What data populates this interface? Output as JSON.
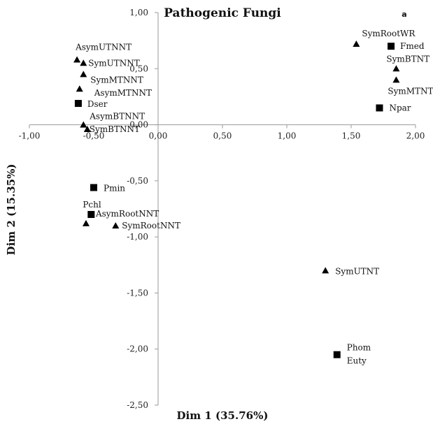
{
  "chart_data": {
    "type": "scatter",
    "title": "Pathogenic Fungi",
    "panel_label": "a",
    "xlabel": "Dim 1 (35.76%)",
    "ylabel": "Dim 2 (15.35%)",
    "xlim": [
      -1.0,
      2.0
    ],
    "ylim": [
      -2.5,
      1.0
    ],
    "x_ticks": [
      "-1,00",
      "-0,50",
      "0,00",
      "0,50",
      "1,00",
      "1,50",
      "2,00"
    ],
    "y_ticks": [
      "1,00",
      "0,50",
      "0,00",
      "-0,50",
      "-1,00",
      "-1,50",
      "-2,00",
      "-2,50"
    ],
    "grid": false,
    "series": [
      {
        "marker": "triangle",
        "points": [
          {
            "label": "AsymUTNNT",
            "x": -0.63,
            "y": 0.58
          },
          {
            "label": "SymUTNNT",
            "x": -0.58,
            "y": 0.55
          },
          {
            "label": "SymMTNNT",
            "x": -0.58,
            "y": 0.45
          },
          {
            "label": "AsymMTNNT",
            "x": -0.61,
            "y": 0.32
          },
          {
            "label": "AsymBTNNT",
            "x": -0.58,
            "y": 0.0
          },
          {
            "label": "SymBTNNT",
            "x": -0.55,
            "y": -0.04
          },
          {
            "label": "AsymRootNNT",
            "x": -0.56,
            "y": -0.88
          },
          {
            "label": "SymRootNNT",
            "x": -0.33,
            "y": -0.9
          },
          {
            "label": "SymRootWR",
            "x": 1.54,
            "y": 0.72
          },
          {
            "label": "SymBTNT",
            "x": 1.85,
            "y": 0.5
          },
          {
            "label": "SymMTNT",
            "x": 1.85,
            "y": 0.4
          },
          {
            "label": "SymUTNT",
            "x": 1.3,
            "y": -1.3
          }
        ]
      },
      {
        "marker": "square",
        "points": [
          {
            "label": "Fmed",
            "x": 1.81,
            "y": 0.7
          },
          {
            "label": "Npar",
            "x": 1.72,
            "y": 0.15
          },
          {
            "label": "Dser",
            "x": -0.62,
            "y": 0.19
          },
          {
            "label": "Pmin",
            "x": -0.5,
            "y": -0.56
          },
          {
            "label": "Pchl",
            "x": -0.52,
            "y": -0.8
          },
          {
            "label": "Phom",
            "x": 1.39,
            "y": -2.05
          },
          {
            "label": "Euty",
            "x": null,
            "y": null
          }
        ]
      }
    ]
  }
}
